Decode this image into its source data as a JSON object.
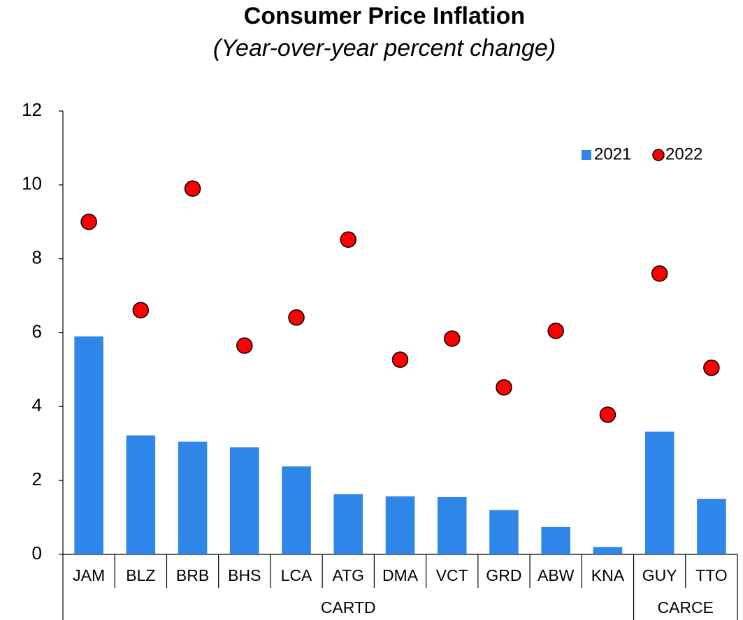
{
  "chart_data": {
    "type": "bar",
    "title": "Consumer Price Inflation",
    "subtitle": "(Year-over-year percent change)",
    "groups": [
      {
        "name": "CARTD",
        "categories": [
          "JAM",
          "BLZ",
          "BRB",
          "BHS",
          "LCA",
          "ATG",
          "DMA",
          "VCT",
          "GRD",
          "ABW",
          "KNA"
        ]
      },
      {
        "name": "CARCE",
        "categories": [
          "GUY",
          "TTO"
        ]
      }
    ],
    "series": [
      {
        "name": "2021",
        "type": "bar",
        "color": "#2e86e8",
        "values": [
          5.9,
          3.22,
          3.05,
          2.9,
          2.38,
          1.63,
          1.57,
          1.55,
          1.2,
          0.74,
          0.2,
          3.32,
          1.5
        ]
      },
      {
        "name": "2022",
        "type": "scatter",
        "color": "#ff0000",
        "values": [
          9.0,
          6.61,
          9.9,
          5.65,
          6.41,
          8.52,
          5.27,
          5.84,
          4.52,
          6.05,
          3.78,
          7.6,
          5.05
        ]
      }
    ],
    "ylim": [
      0,
      12
    ],
    "yticks": [
      0,
      2,
      4,
      6,
      8,
      10,
      12
    ],
    "grid": false,
    "legend": "top-right"
  }
}
